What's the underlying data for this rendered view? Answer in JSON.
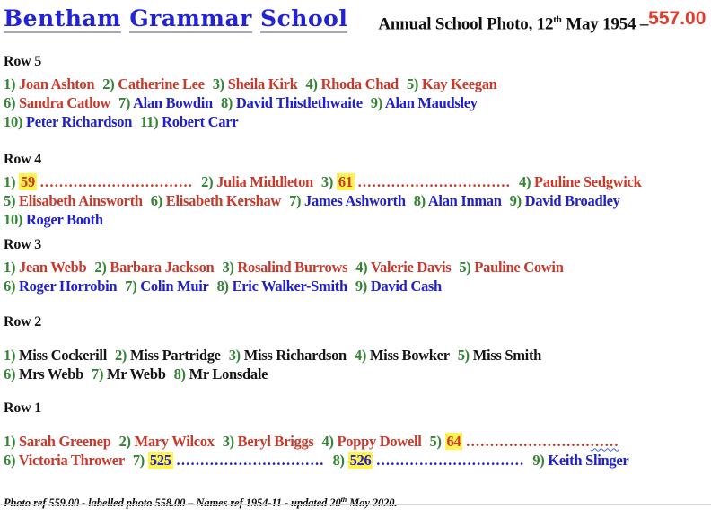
{
  "header": {
    "school_name": "Bentham Grammar School",
    "title_pre": "Annual School Photo, 12",
    "title_sup": "th",
    "title_post": " May 1954 –",
    "photo_ref": "557.00"
  },
  "colors": {
    "number_green": "#338433",
    "female_red": "#C9392B",
    "male_blue": "#2121CC",
    "staff_black": "#151515",
    "highlight_yellow": "#FFF34D",
    "school_name_blue": "#2323D6",
    "photo_ref_red": "#E23B2A"
  },
  "rows": [
    {
      "id": "row-5",
      "label": "Row 5",
      "lines": [
        [
          {
            "n": "1)",
            "t": "Joan Ashton",
            "c": "red"
          },
          {
            "n": "2)",
            "t": "Catherine Lee",
            "c": "red"
          },
          {
            "n": "3)",
            "t": "Sheila Kirk",
            "c": "red"
          },
          {
            "n": "4)",
            "t": "Rhoda Chad",
            "c": "red"
          },
          {
            "n": "5)",
            "t": "Kay Keegan",
            "c": "red"
          }
        ],
        [
          {
            "n": "6)",
            "t": "Sandra Catlow",
            "c": "red"
          },
          {
            "n": "7)",
            "t": "Alan Bowdin",
            "c": "blue"
          },
          {
            "n": "8)",
            "t": "David Thistlethwaite",
            "c": "blue"
          },
          {
            "n": "9)",
            "t": "Alan Maudsley",
            "c": "blue"
          }
        ],
        [
          {
            "n": "10)",
            "t": "Peter Richardson",
            "c": "blue"
          },
          {
            "n": "11)",
            "t": "Robert Carr",
            "c": "blue"
          }
        ]
      ]
    },
    {
      "id": "row-4",
      "label": "Row 4",
      "lines": [
        [
          {
            "n": "1)",
            "t": "59",
            "c": "red",
            "h": true,
            "d": "................................"
          },
          {
            "n": "2)",
            "t": "Julia Middleton",
            "c": "red"
          },
          {
            "n": "3)",
            "t": "61",
            "c": "red",
            "h": true,
            "d": "................................"
          },
          {
            "n": "4)",
            "t": "Pauline Sedgwick",
            "c": "red"
          }
        ],
        [
          {
            "n": "5)",
            "t": "Elisabeth Ainsworth",
            "c": "red"
          },
          {
            "n": "6)",
            "t": "Elisabeth Kershaw",
            "c": "red"
          },
          {
            "n": "7)",
            "t": "James Ashworth",
            "c": "blue"
          },
          {
            "n": "8)",
            "t": "Alan Inman",
            "c": "blue"
          },
          {
            "n": "9)",
            "t": "David Broadley",
            "c": "blue"
          }
        ],
        [
          {
            "n": "10)",
            "t": "Roger Booth",
            "c": "blue"
          }
        ]
      ]
    },
    {
      "id": "row-3",
      "label": "Row 3",
      "lines": [
        [
          {
            "n": "1)",
            "t": "Jean Webb",
            "c": "red"
          },
          {
            "n": "2)",
            "t": "Barbara Jackson",
            "c": "red"
          },
          {
            "n": "3)",
            "t": "Rosalind Burrows",
            "c": "red"
          },
          {
            "n": "4)",
            "t": "Valerie Davis",
            "c": "red"
          },
          {
            "n": "5)",
            "t": "Pauline Cowin",
            "c": "red"
          }
        ],
        [
          {
            "n": "6)",
            "t": "Roger Horrobin",
            "c": "blue"
          },
          {
            "n": "7)",
            "t": "Colin Muir",
            "c": "blue"
          },
          {
            "n": "8)",
            "t": "Eric Walker-Smith",
            "c": "blue"
          },
          {
            "n": "9)",
            "t": "David Cash",
            "c": "blue"
          }
        ]
      ]
    },
    {
      "id": "row-2",
      "label": "Row 2",
      "lines": [
        [
          {
            "n": "1)",
            "t": "Miss Cockerill",
            "c": "black"
          },
          {
            "n": "2)",
            "t": "Miss Partridge",
            "c": "black"
          },
          {
            "n": "3)",
            "t": "Miss Richardson",
            "c": "black"
          },
          {
            "n": "4)",
            "t": "Miss Bowker",
            "c": "black"
          },
          {
            "n": "5)",
            "t": "Miss Smith",
            "c": "black"
          }
        ],
        [
          {
            "n": "6)",
            "t": "Mrs Webb",
            "c": "black"
          },
          {
            "n": "7)",
            "t": "Mr Webb",
            "c": "black"
          },
          {
            "n": "8)",
            "t": "Mr Lonsdale",
            "c": "black"
          }
        ]
      ]
    },
    {
      "id": "row-1",
      "label": "Row 1",
      "lines": [
        [
          {
            "n": "1)",
            "t": "Sarah Greenep",
            "c": "red"
          },
          {
            "n": "2)",
            "t": "Mary Wilcox",
            "c": "red"
          },
          {
            "n": "3)",
            "t": "Beryl Briggs",
            "c": "red"
          },
          {
            "n": "4)",
            "t": "Poppy Dowell",
            "c": "red"
          },
          {
            "n": "5)",
            "t": "64",
            "c": "red",
            "h": true,
            "d": "..........................",
            "d2": "......"
          }
        ],
        [
          {
            "n": "6)",
            "t": "Victoria Thrower",
            "c": "red"
          },
          {
            "n": "7)",
            "t": "525",
            "c": "blue",
            "h": true,
            "d": "..............................."
          },
          {
            "n": "8)",
            "t": "526",
            "c": "blue",
            "h": true,
            "d": "..............................."
          },
          {
            "n": "9)",
            "t": "Keith Slinger",
            "c": "blue"
          }
        ]
      ]
    }
  ],
  "footer": {
    "pre": "Photo ref 559.00 - labelled photo 558.00 – Names ref 1954-11 - updated 20",
    "sup": "th",
    "post": " May 2020."
  }
}
